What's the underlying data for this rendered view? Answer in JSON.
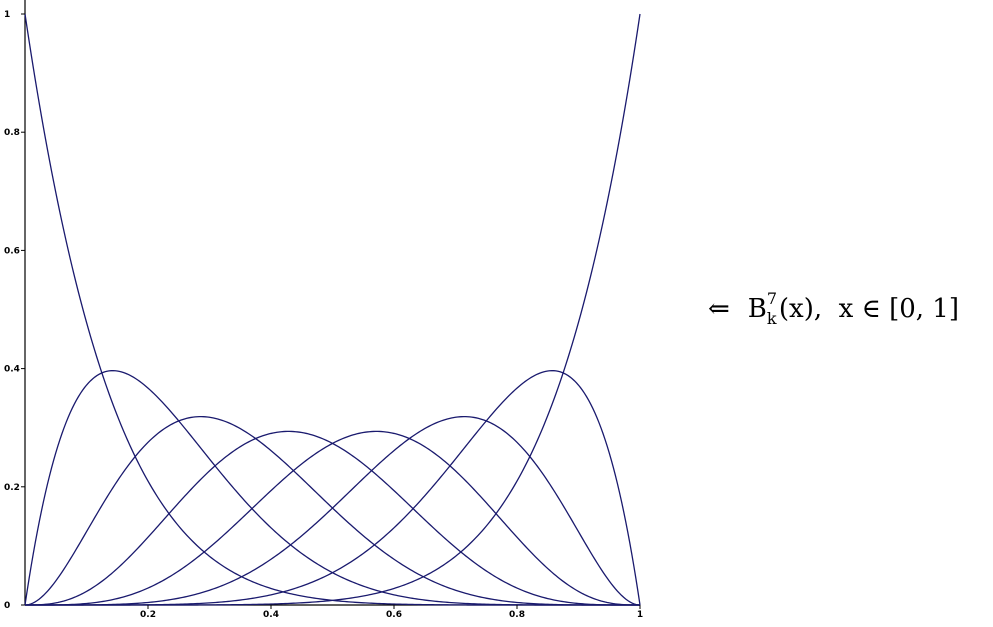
{
  "caption": {
    "arrow": "⇐",
    "func_letter": "B",
    "superscript": "7",
    "subscript": "k",
    "argument": "(x),",
    "domain_text": "x ∈ [0, 1]"
  },
  "colors": {
    "curve": "#1a1a6e",
    "axis": "#000000"
  },
  "chart_data": {
    "type": "line",
    "title": "",
    "xlabel": "",
    "ylabel": "",
    "xlim": [
      0,
      1
    ],
    "ylim": [
      0,
      1
    ],
    "grid": false,
    "x_ticks": [
      0.2,
      0.4,
      0.6,
      0.8,
      1
    ],
    "x_tick_labels": [
      "0.2",
      "0.4",
      "0.6",
      "0.8",
      "1"
    ],
    "y_ticks": [
      0,
      0.2,
      0.4,
      0.6,
      0.8,
      1
    ],
    "y_tick_labels": [
      "0",
      "0.2",
      "0.4",
      "0.6",
      "0.8",
      "1"
    ],
    "function": "Bernstein basis polynomial B_k^7(x) = C(7,k) x^k (1-x)^(7-k)",
    "degree": 7,
    "series": [
      {
        "k": 0,
        "x": [
          0,
          0.1,
          0.2,
          0.3,
          0.4,
          0.5,
          0.6,
          0.7,
          0.8,
          0.9,
          1
        ],
        "values": [
          1,
          0.478,
          0.21,
          0.082,
          0.028,
          0.008,
          0.002,
          0,
          0,
          0,
          0
        ]
      },
      {
        "k": 1,
        "x": [
          0,
          0.1,
          0.2,
          0.3,
          0.4,
          0.5,
          0.6,
          0.7,
          0.8,
          0.9,
          1
        ],
        "values": [
          0,
          0.372,
          0.367,
          0.247,
          0.131,
          0.055,
          0.017,
          0.004,
          0,
          0,
          0
        ]
      },
      {
        "k": 2,
        "x": [
          0,
          0.1,
          0.2,
          0.3,
          0.4,
          0.5,
          0.6,
          0.7,
          0.8,
          0.9,
          1
        ],
        "values": [
          0,
          0.124,
          0.275,
          0.318,
          0.261,
          0.164,
          0.077,
          0.025,
          0.004,
          0,
          0
        ]
      },
      {
        "k": 3,
        "x": [
          0,
          0.1,
          0.2,
          0.3,
          0.4,
          0.5,
          0.6,
          0.7,
          0.8,
          0.9,
          1
        ],
        "values": [
          0,
          0.023,
          0.115,
          0.227,
          0.29,
          0.273,
          0.194,
          0.097,
          0.029,
          0.003,
          0
        ]
      },
      {
        "k": 4,
        "x": [
          0,
          0.1,
          0.2,
          0.3,
          0.4,
          0.5,
          0.6,
          0.7,
          0.8,
          0.9,
          1
        ],
        "values": [
          0,
          0.003,
          0.029,
          0.097,
          0.194,
          0.273,
          0.29,
          0.227,
          0.115,
          0.023,
          0
        ]
      },
      {
        "k": 5,
        "x": [
          0,
          0.1,
          0.2,
          0.3,
          0.4,
          0.5,
          0.6,
          0.7,
          0.8,
          0.9,
          1
        ],
        "values": [
          0,
          0,
          0.004,
          0.025,
          0.077,
          0.164,
          0.261,
          0.318,
          0.275,
          0.124,
          0
        ]
      },
      {
        "k": 6,
        "x": [
          0,
          0.1,
          0.2,
          0.3,
          0.4,
          0.5,
          0.6,
          0.7,
          0.8,
          0.9,
          1
        ],
        "values": [
          0,
          0,
          0,
          0.004,
          0.017,
          0.055,
          0.131,
          0.247,
          0.367,
          0.372,
          0
        ]
      },
      {
        "k": 7,
        "x": [
          0,
          0.1,
          0.2,
          0.3,
          0.4,
          0.5,
          0.6,
          0.7,
          0.8,
          0.9,
          1
        ],
        "values": [
          0,
          0,
          0,
          0,
          0.002,
          0.008,
          0.028,
          0.082,
          0.21,
          0.478,
          1
        ]
      }
    ]
  }
}
